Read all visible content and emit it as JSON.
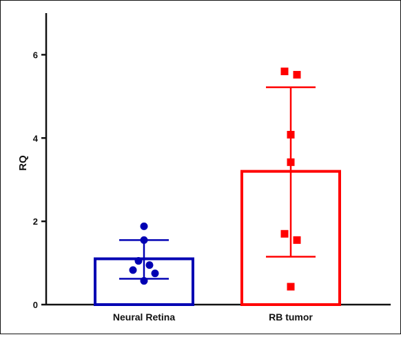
{
  "chart_data": {
    "type": "bar",
    "title": "",
    "xlabel": "",
    "ylabel": "RQ",
    "ylim": [
      0,
      7
    ],
    "yticks": [
      0,
      2,
      4,
      6
    ],
    "grid": false,
    "categories": [
      "Neural Retina",
      "RB tumor"
    ],
    "bars": [
      {
        "category": "Neural Retina",
        "mean": 1.1,
        "sd_low": 0.62,
        "sd_high": 1.55,
        "color": "#0000b3",
        "marker": "circle",
        "points": [
          1.88,
          1.55,
          1.05,
          0.95,
          0.83,
          0.75,
          0.57
        ]
      },
      {
        "category": "RB tumor",
        "mean": 3.2,
        "sd_low": 1.15,
        "sd_high": 5.22,
        "color": "#ff0000",
        "marker": "square",
        "points": [
          5.6,
          5.52,
          4.08,
          3.42,
          1.7,
          1.55,
          0.43
        ]
      }
    ]
  }
}
